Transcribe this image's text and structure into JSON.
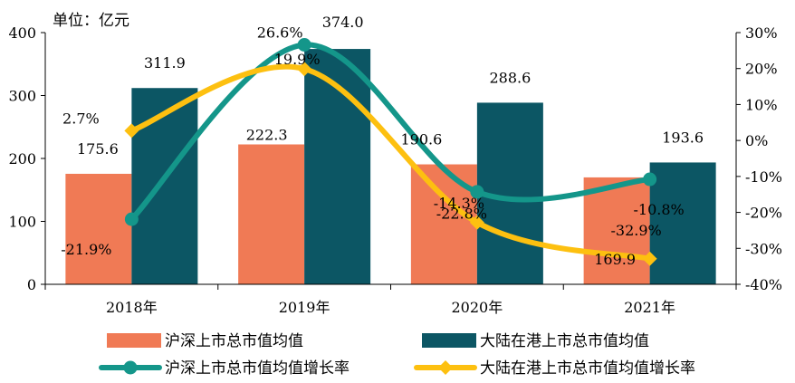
{
  "chart_data": {
    "type": "bar+line",
    "unit_label": "单位：亿元",
    "categories": [
      "2018年",
      "2019年",
      "2020年",
      "2021年"
    ],
    "left_axis": {
      "ylim": [
        0,
        400
      ],
      "ticks": [
        "0",
        "100",
        "200",
        "300",
        "400"
      ]
    },
    "right_axis": {
      "ylim": [
        -40,
        30
      ],
      "ticks": [
        "-40%",
        "-30%",
        "-20%",
        "-10%",
        "0%",
        "10%",
        "20%",
        "30%"
      ]
    },
    "bar_series": [
      {
        "name": "沪深上市总市值均值",
        "color": "#f07a55",
        "values": [
          175.6,
          222.3,
          190.6,
          169.9
        ],
        "labels": [
          "175.6",
          "222.3",
          "190.6",
          "169.9"
        ]
      },
      {
        "name": "大陆在港上市总市值均值",
        "color": "#0c5664",
        "values": [
          311.9,
          374.0,
          288.6,
          193.6
        ],
        "labels": [
          "311.9",
          "374.0",
          "288.6",
          "193.6"
        ]
      }
    ],
    "line_series": [
      {
        "name": "沪深上市总市值均值增长率",
        "color": "#14968a",
        "marker": "circle",
        "values": [
          -21.9,
          26.6,
          -14.3,
          -10.8
        ],
        "labels": [
          "-21.9%",
          "26.6%",
          "-14.3%",
          "-10.8%"
        ]
      },
      {
        "name": "大陆在港上市总市值均值增长率",
        "color": "#fdc010",
        "marker": "diamond",
        "values": [
          2.7,
          19.9,
          -22.8,
          -32.9
        ],
        "labels": [
          "2.7%",
          "19.9%",
          "-22.8%",
          "-32.9%"
        ]
      }
    ],
    "legend_position": "bottom",
    "grid": false
  }
}
